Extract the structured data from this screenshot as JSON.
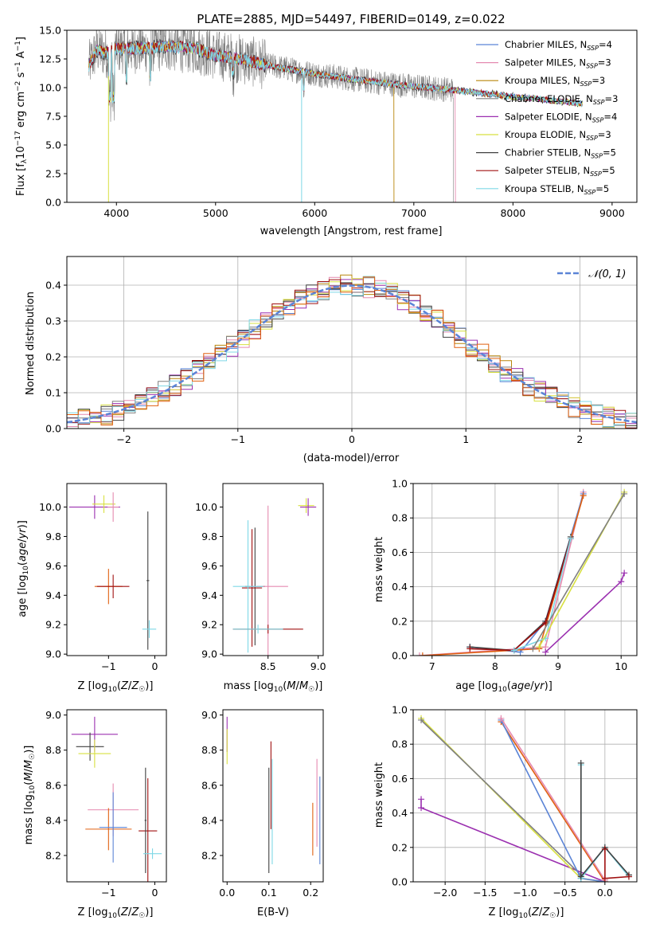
{
  "figure": {
    "title": "PLATE=2885, MJD=54497, FIBERID=0149, z=0.022"
  },
  "legend_spectrum": [
    {
      "label": "Chabrier MILES, N",
      "sub": "SSP",
      "tail": "=4",
      "color": "#5b84d6"
    },
    {
      "label": "Salpeter MILES, N",
      "sub": "SSP",
      "tail": "=3",
      "color": "#e58ab0"
    },
    {
      "label": "Kroupa MILES, N",
      "sub": "SSP",
      "tail": "=3",
      "color": "#b8860b"
    },
    {
      "label": "Chabrier ELODIE, N",
      "sub": "SSP",
      "tail": "=3",
      "color": "#808080"
    },
    {
      "label": "Salpeter ELODIE, N",
      "sub": "SSP",
      "tail": "=4",
      "color": "#9b30b0"
    },
    {
      "label": "Kroupa ELODIE, N",
      "sub": "SSP",
      "tail": "=3",
      "color": "#d8e040"
    },
    {
      "label": "Chabrier STELIB, N",
      "sub": "SSP",
      "tail": "=5",
      "color": "#404040"
    },
    {
      "label": "Salpeter STELIB, N",
      "sub": "SSP",
      "tail": "=5",
      "color": "#a01010"
    },
    {
      "label": "Kroupa STELIB, N",
      "sub": "SSP",
      "tail": "=5",
      "color": "#7fd8e6"
    }
  ],
  "legend_hist": {
    "label": "𝒩(0, 1)",
    "color": "#5b84d6"
  },
  "axes_text": {
    "spec_xlabel": "wavelength [Angstrom, rest frame]",
    "spec_ylabel": "Flux [f",
    "hist_xlabel": "(data-model)/error",
    "hist_ylabel": "Normed distribution",
    "zlabel": "Z [log",
    "age_ylabel": "age  [log",
    "mass_xlabel": "mass [log",
    "mass_ylabel": "mass [log",
    "ebv_xlabel": "E(B-V)",
    "mw_ylabel": "mass weight",
    "age_xlabel": "age  [log"
  },
  "chart_data": [
    {
      "id": "spectrum",
      "type": "line",
      "xlim": [
        3500,
        9250
      ],
      "ylim": [
        0,
        15
      ],
      "xticks": [
        4000,
        5000,
        6000,
        7000,
        8000,
        9000
      ],
      "yticks": [
        0.0,
        2.5,
        5.0,
        7.5,
        10.0,
        12.5,
        15.0
      ],
      "continuum": [
        [
          3700,
          11.5
        ],
        [
          3800,
          13.3
        ],
        [
          3900,
          13.0
        ],
        [
          4000,
          13.4
        ],
        [
          4200,
          13.4
        ],
        [
          4500,
          13.6
        ],
        [
          4800,
          13.4
        ],
        [
          5000,
          12.8
        ],
        [
          5200,
          12.6
        ],
        [
          5500,
          12.0
        ],
        [
          6000,
          11.2
        ],
        [
          6500,
          10.6
        ],
        [
          7000,
          10.1
        ],
        [
          7400,
          9.8
        ],
        [
          8000,
          9.2
        ],
        [
          8500,
          8.8
        ],
        [
          8700,
          8.6
        ]
      ],
      "grid": false
    },
    {
      "id": "residual_hist",
      "type": "bar",
      "xlim": [
        -2.5,
        2.5
      ],
      "ylim": [
        0,
        0.48
      ],
      "xticks": [
        -2,
        -1,
        0,
        1,
        2
      ],
      "yticks": [
        0.0,
        0.1,
        0.2,
        0.3,
        0.4
      ],
      "curve": "normal(0,1)",
      "grid": true
    },
    {
      "id": "age_vs_Z",
      "type": "scatter",
      "xlim": [
        -1.9,
        0.25
      ],
      "ylim": [
        8.99,
        10.16
      ],
      "xticks": [
        -1,
        0
      ],
      "yticks": [
        9.0,
        9.2,
        9.4,
        9.6,
        9.8,
        10.0
      ],
      "points": [
        {
          "x": -1.3,
          "y": 10.0,
          "xerr": 0.55,
          "yerr": 0.08,
          "color": "#9b30b0"
        },
        {
          "x": -1.1,
          "y": 10.02,
          "xerr": 0.25,
          "yerr": 0.06,
          "color": "#d8e040"
        },
        {
          "x": -0.9,
          "y": 10.0,
          "xerr": 0.12,
          "yerr": 0.1,
          "color": "#e58ab0"
        },
        {
          "x": -1.0,
          "y": 9.46,
          "xerr": 0.3,
          "yerr": 0.12,
          "color": "#e06010"
        },
        {
          "x": -0.9,
          "y": 9.46,
          "xerr": 0.35,
          "yerr": 0.08,
          "color": "#a01010"
        },
        {
          "x": -0.15,
          "y": 9.5,
          "xerr": 0.03,
          "yerr": 0.47,
          "color": "#404040"
        },
        {
          "x": -0.12,
          "y": 9.17,
          "xerr": 0.15,
          "yerr": 0.06,
          "color": "#7fd8e6"
        }
      ]
    },
    {
      "id": "age_vs_mass",
      "type": "scatter",
      "xlim": [
        8.05,
        9.05
      ],
      "ylim": [
        8.99,
        10.16
      ],
      "xticks": [
        8.5,
        9.0
      ],
      "yticks": [
        9.0,
        9.2,
        9.4,
        9.6,
        9.8,
        10.0
      ],
      "points": [
        {
          "x": 8.88,
          "y": 10.01,
          "xerr": 0.08,
          "yerr": 0.05,
          "color": "#d8e040"
        },
        {
          "x": 8.9,
          "y": 10.0,
          "xerr": 0.08,
          "yerr": 0.06,
          "color": "#9b30b0"
        },
        {
          "x": 8.37,
          "y": 9.46,
          "xerr": 0.1,
          "yerr": 0.4,
          "color": "#404040"
        },
        {
          "x": 8.34,
          "y": 9.45,
          "xerr": 0.1,
          "yerr": 0.4,
          "color": "#a01010"
        },
        {
          "x": 8.5,
          "y": 9.46,
          "xerr": 0.2,
          "yerr": 0.55,
          "color": "#e58ab0"
        },
        {
          "x": 8.3,
          "y": 9.46,
          "xerr": 0.15,
          "yerr": 0.45,
          "color": "#7fd8e6"
        },
        {
          "x": 8.5,
          "y": 9.17,
          "xerr": 0.35,
          "yerr": 0.03,
          "color": "#a01010"
        },
        {
          "x": 8.4,
          "y": 9.17,
          "xerr": 0.25,
          "yerr": 0.03,
          "color": "#7fd8e6"
        }
      ]
    },
    {
      "id": "massweight_vs_age",
      "type": "line",
      "xlim": [
        6.7,
        10.25
      ],
      "ylim": [
        0,
        1.0
      ],
      "xticks": [
        7,
        8,
        9,
        10
      ],
      "yticks": [
        0.0,
        0.2,
        0.4,
        0.6,
        0.8,
        1.0
      ],
      "grid": true,
      "series": [
        {
          "color": "#e58ab0",
          "x": [
            6.8,
            8.8,
            9.4
          ],
          "y": [
            0.0,
            0.05,
            0.95
          ]
        },
        {
          "color": "#5b84d6",
          "x": [
            7.6,
            8.4,
            8.8,
            9.4
          ],
          "y": [
            0.05,
            0.02,
            0.2,
            0.94
          ]
        },
        {
          "color": "#e06010",
          "x": [
            6.85,
            8.7,
            9.4
          ],
          "y": [
            0.0,
            0.04,
            0.93
          ]
        },
        {
          "color": "#404040",
          "x": [
            7.6,
            8.3,
            8.8,
            9.2
          ],
          "y": [
            0.05,
            0.03,
            0.2,
            0.69
          ]
        },
        {
          "color": "#a01010",
          "x": [
            7.6,
            8.3,
            8.8,
            9.2
          ],
          "y": [
            0.04,
            0.03,
            0.19,
            0.68
          ]
        },
        {
          "color": "#7fd8e6",
          "x": [
            8.3,
            8.8,
            9.2
          ],
          "y": [
            0.03,
            0.1,
            0.68
          ]
        },
        {
          "color": "#9b30b0",
          "x": [
            8.8,
            10.0,
            10.05
          ],
          "y": [
            0.02,
            0.43,
            0.48
          ]
        },
        {
          "color": "#d8e040",
          "x": [
            8.7,
            10.05
          ],
          "y": [
            0.05,
            0.95
          ]
        },
        {
          "color": "#808080",
          "x": [
            8.6,
            10.05
          ],
          "y": [
            0.04,
            0.94
          ]
        }
      ]
    },
    {
      "id": "mass_vs_Z",
      "type": "scatter",
      "xlim": [
        -1.9,
        0.25
      ],
      "ylim": [
        8.05,
        9.03
      ],
      "xticks": [
        -1,
        0
      ],
      "yticks": [
        8.2,
        8.4,
        8.6,
        8.8,
        9.0
      ],
      "points": [
        {
          "x": -1.3,
          "y": 8.89,
          "xerr": 0.5,
          "yerr": 0.1,
          "color": "#9b30b0"
        },
        {
          "x": -1.4,
          "y": 8.82,
          "xerr": 0.3,
          "yerr": 0.08,
          "color": "#404040"
        },
        {
          "x": -1.3,
          "y": 8.78,
          "xerr": 0.35,
          "yerr": 0.08,
          "color": "#d8e040"
        },
        {
          "x": -0.9,
          "y": 8.46,
          "xerr": 0.55,
          "yerr": 0.15,
          "color": "#e58ab0"
        },
        {
          "x": -1.0,
          "y": 8.35,
          "xerr": 0.5,
          "yerr": 0.12,
          "color": "#e06010"
        },
        {
          "x": -0.9,
          "y": 8.36,
          "xerr": 0.3,
          "yerr": 0.2,
          "color": "#5b84d6"
        },
        {
          "x": -0.15,
          "y": 8.34,
          "xerr": 0.2,
          "yerr": 0.3,
          "color": "#a01010"
        },
        {
          "x": -0.2,
          "y": 8.4,
          "xerr": 0.02,
          "yerr": 0.3,
          "color": "#404040"
        },
        {
          "x": -0.05,
          "y": 8.21,
          "xerr": 0.2,
          "yerr": 0.03,
          "color": "#7fd8e6"
        }
      ]
    },
    {
      "id": "mass_vs_ebv",
      "type": "scatter",
      "xlim": [
        -0.01,
        0.23
      ],
      "ylim": [
        8.05,
        9.03
      ],
      "xticks": [
        0.0,
        0.1,
        0.2
      ],
      "yticks": [
        8.2,
        8.4,
        8.6,
        8.8,
        9.0
      ],
      "points": [
        {
          "x": 0.0,
          "y": 8.89,
          "xerr": 0.0,
          "yerr": 0.1,
          "color": "#9b30b0"
        },
        {
          "x": 0.0,
          "y": 8.82,
          "xerr": 0.0,
          "yerr": 0.1,
          "color": "#d8e040"
        },
        {
          "x": 0.1,
          "y": 8.4,
          "xerr": 0.0,
          "yerr": 0.3,
          "color": "#404040"
        },
        {
          "x": 0.105,
          "y": 8.6,
          "xerr": 0.0,
          "yerr": 0.25,
          "color": "#a01010"
        },
        {
          "x": 0.108,
          "y": 8.45,
          "xerr": 0.0,
          "yerr": 0.3,
          "color": "#7fd8e6"
        },
        {
          "x": 0.205,
          "y": 8.35,
          "xerr": 0.0,
          "yerr": 0.15,
          "color": "#e06010"
        },
        {
          "x": 0.215,
          "y": 8.5,
          "xerr": 0.0,
          "yerr": 0.25,
          "color": "#e58ab0"
        },
        {
          "x": 0.222,
          "y": 8.4,
          "xerr": 0.0,
          "yerr": 0.25,
          "color": "#5b84d6"
        }
      ]
    },
    {
      "id": "massweight_vs_Z",
      "type": "line",
      "xlim": [
        -2.4,
        0.4
      ],
      "ylim": [
        0,
        1.0
      ],
      "xticks": [
        -2.0,
        -1.5,
        -1.0,
        -0.5,
        0.0
      ],
      "yticks": [
        0.0,
        0.2,
        0.4,
        0.6,
        0.8,
        1.0
      ],
      "grid": true,
      "series": [
        {
          "color": "#9b30b0",
          "x": [
            -2.3,
            -2.3,
            0.0
          ],
          "y": [
            0.48,
            0.43,
            0.0
          ]
        },
        {
          "color": "#d8e040",
          "x": [
            -2.3,
            -0.3,
            0.0
          ],
          "y": [
            0.95,
            0.02,
            0.0
          ]
        },
        {
          "color": "#808080",
          "x": [
            -2.3,
            -0.3
          ],
          "y": [
            0.94,
            0.04
          ]
        },
        {
          "color": "#e06010",
          "x": [
            -1.3,
            0.0
          ],
          "y": [
            0.93,
            0.0
          ]
        },
        {
          "color": "#5b84d6",
          "x": [
            -1.3,
            -0.3,
            0.0
          ],
          "y": [
            0.94,
            0.02,
            0.0
          ]
        },
        {
          "color": "#e58ab0",
          "x": [
            -1.3,
            0.0
          ],
          "y": [
            0.95,
            0.01
          ]
        },
        {
          "color": "#7fd8e6",
          "x": [
            -0.3,
            -0.3,
            0.0,
            0.3
          ],
          "y": [
            0.68,
            0.02,
            0.2,
            0.03
          ]
        },
        {
          "color": "#404040",
          "x": [
            -0.3,
            -0.3,
            0.0,
            0.3
          ],
          "y": [
            0.69,
            0.03,
            0.2,
            0.04
          ]
        },
        {
          "color": "#a01010",
          "x": [
            0.0,
            0.0,
            0.3
          ],
          "y": [
            0.19,
            0.02,
            0.03
          ]
        }
      ]
    }
  ]
}
